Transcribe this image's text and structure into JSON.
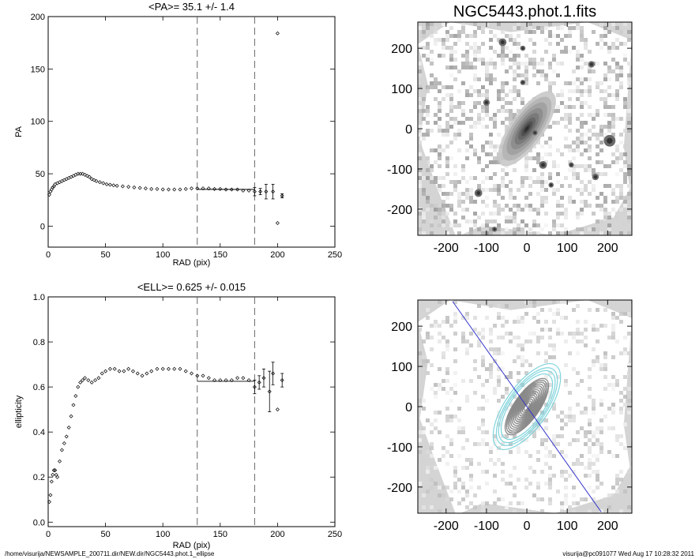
{
  "footer": {
    "path": "/home/visurija/NEWSAMPLE_200711.dir/NEW.dir/NGC5443.phot.1_ellipse",
    "stamp": "visurija@pc091077  Wed Aug 17 10:28:32 2011"
  },
  "chart_data": [
    {
      "type": "scatter",
      "title": "<PA>=  35.1 +/-   1.4",
      "xlabel": "RAD (pix)",
      "ylabel": "PA",
      "xlim": [
        0,
        250
      ],
      "ylim": [
        -20,
        200
      ],
      "xticks": [
        0,
        50,
        100,
        150,
        200,
        250
      ],
      "yticks": [
        0,
        50,
        100,
        150,
        200
      ],
      "vlines": [
        130,
        180
      ],
      "mean_line": {
        "x": [
          130,
          180
        ],
        "y": 35.1
      },
      "points": [
        [
          1,
          30
        ],
        [
          2,
          33
        ],
        [
          3,
          35
        ],
        [
          4,
          37
        ],
        [
          5,
          38
        ],
        [
          6,
          40
        ],
        [
          8,
          41
        ],
        [
          10,
          42
        ],
        [
          12,
          43
        ],
        [
          14,
          44
        ],
        [
          16,
          45
        ],
        [
          18,
          46
        ],
        [
          20,
          47
        ],
        [
          22,
          48
        ],
        [
          24,
          49
        ],
        [
          26,
          50
        ],
        [
          28,
          50
        ],
        [
          30,
          50
        ],
        [
          32,
          49
        ],
        [
          34,
          48
        ],
        [
          36,
          47
        ],
        [
          38,
          45
        ],
        [
          40,
          44
        ],
        [
          42,
          43
        ],
        [
          45,
          42
        ],
        [
          48,
          41
        ],
        [
          51,
          40
        ],
        [
          54,
          39.5
        ],
        [
          57,
          39
        ],
        [
          60,
          38.5
        ],
        [
          65,
          38
        ],
        [
          70,
          37.5
        ],
        [
          75,
          37
        ],
        [
          80,
          36.5
        ],
        [
          85,
          36
        ],
        [
          90,
          35.5
        ],
        [
          95,
          35.5
        ],
        [
          100,
          35
        ],
        [
          105,
          35
        ],
        [
          110,
          35
        ],
        [
          115,
          35
        ],
        [
          120,
          35.5
        ],
        [
          125,
          36
        ],
        [
          130,
          36
        ],
        [
          135,
          36
        ],
        [
          140,
          36
        ],
        [
          145,
          35.5
        ],
        [
          150,
          35.5
        ],
        [
          155,
          35
        ],
        [
          160,
          35
        ],
        [
          165,
          35
        ],
        [
          170,
          34
        ],
        [
          175,
          34
        ],
        [
          180,
          33
        ],
        [
          185,
          33
        ],
        [
          190,
          33
        ],
        [
          196,
          33
        ],
        [
          200,
          3
        ],
        [
          200,
          184
        ],
        [
          204,
          29
        ]
      ],
      "errorbars": [
        [
          180,
          33,
          4
        ],
        [
          185,
          33,
          3
        ],
        [
          190,
          33,
          7
        ],
        [
          196,
          33,
          7
        ],
        [
          204,
          29,
          2
        ]
      ]
    },
    {
      "type": "scatter",
      "title": "<ELL>= 0.625 +/-  0.015",
      "xlabel": "RAD (pix)",
      "ylabel": "ellipticity",
      "xlim": [
        0,
        250
      ],
      "ylim": [
        -0.02,
        1.0
      ],
      "xticks": [
        0,
        50,
        100,
        150,
        200,
        250
      ],
      "yticks": [
        0.0,
        0.2,
        0.4,
        0.6,
        0.8,
        1.0
      ],
      "vlines": [
        130,
        180
      ],
      "mean_line": {
        "x": [
          130,
          180
        ],
        "y": 0.625
      },
      "points": [
        [
          1,
          0.09
        ],
        [
          2,
          0.12
        ],
        [
          3,
          0.18
        ],
        [
          4,
          0.21
        ],
        [
          5,
          0.23
        ],
        [
          6,
          0.23
        ],
        [
          7,
          0.21
        ],
        [
          8,
          0.2
        ],
        [
          10,
          0.27
        ],
        [
          12,
          0.32
        ],
        [
          14,
          0.35
        ],
        [
          16,
          0.38
        ],
        [
          18,
          0.42
        ],
        [
          20,
          0.47
        ],
        [
          22,
          0.52
        ],
        [
          24,
          0.56
        ],
        [
          26,
          0.6
        ],
        [
          28,
          0.62
        ],
        [
          30,
          0.63
        ],
        [
          32,
          0.64
        ],
        [
          35,
          0.63
        ],
        [
          38,
          0.62
        ],
        [
          41,
          0.63
        ],
        [
          44,
          0.64
        ],
        [
          47,
          0.66
        ],
        [
          50,
          0.67
        ],
        [
          54,
          0.68
        ],
        [
          58,
          0.68
        ],
        [
          62,
          0.67
        ],
        [
          66,
          0.67
        ],
        [
          70,
          0.68
        ],
        [
          74,
          0.67
        ],
        [
          78,
          0.66
        ],
        [
          82,
          0.65
        ],
        [
          86,
          0.66
        ],
        [
          90,
          0.67
        ],
        [
          95,
          0.68
        ],
        [
          100,
          0.68
        ],
        [
          105,
          0.68
        ],
        [
          110,
          0.68
        ],
        [
          115,
          0.68
        ],
        [
          120,
          0.67
        ],
        [
          125,
          0.66
        ],
        [
          130,
          0.65
        ],
        [
          135,
          0.65
        ],
        [
          140,
          0.64
        ],
        [
          145,
          0.63
        ],
        [
          150,
          0.63
        ],
        [
          155,
          0.63
        ],
        [
          160,
          0.63
        ],
        [
          165,
          0.64
        ],
        [
          170,
          0.64
        ],
        [
          175,
          0.63
        ],
        [
          180,
          0.6
        ],
        [
          184,
          0.62
        ],
        [
          188,
          0.64
        ],
        [
          193,
          0.58
        ],
        [
          196,
          0.66
        ],
        [
          200,
          0.5
        ],
        [
          204,
          0.63
        ]
      ],
      "errorbars": [
        [
          180,
          0.6,
          0.03
        ],
        [
          184,
          0.62,
          0.03
        ],
        [
          188,
          0.64,
          0.04
        ],
        [
          193,
          0.58,
          0.09
        ],
        [
          196,
          0.66,
          0.05
        ],
        [
          204,
          0.63,
          0.03
        ]
      ]
    },
    {
      "type": "heatmap",
      "title": "NGC5443.phot.1.fits",
      "xlim": [
        -270,
        260
      ],
      "ylim": [
        -265,
        265
      ],
      "xticks": [
        -200,
        -100,
        0,
        100,
        200
      ],
      "yticks": [
        -200,
        -100,
        0,
        100,
        200
      ],
      "galaxy": {
        "pa_deg": 35.1,
        "ellipticity": 0.625,
        "semi_major": 110
      }
    },
    {
      "type": "heatmap",
      "xlim": [
        -270,
        260
      ],
      "ylim": [
        -265,
        265
      ],
      "xticks": [
        -200,
        -100,
        0,
        100,
        200
      ],
      "yticks": [
        -200,
        -100,
        0,
        100,
        200
      ],
      "contour_colors": [
        "#888888",
        "#7fd4dc",
        "#3333cc"
      ]
    }
  ]
}
